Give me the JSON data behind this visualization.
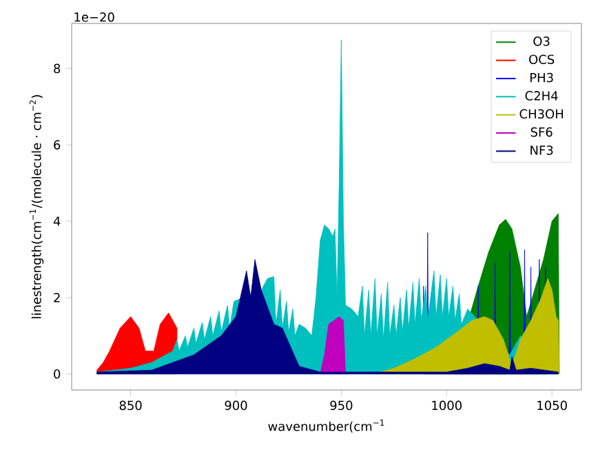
{
  "chart_data": {
    "type": "area",
    "xlabel": "wavenumber(cm$^{−1}$",
    "ylabel": "linestrength(cm$^{−1}$/(molecule · cm$^{−2}$)",
    "annotations": [
      "1e−20"
    ],
    "xlim": [
      822,
      1064
    ],
    "ylim": [
      -0.42,
      9.18
    ],
    "xticks": [
      850,
      900,
      950,
      1000,
      1050
    ],
    "yticks": [
      0,
      2,
      4,
      6,
      8
    ],
    "legend": "top right",
    "series": [
      {
        "name": "O3",
        "color": "#008000",
        "x": [
          1003,
          1015,
          1020,
          1025,
          1028,
          1031,
          1035,
          1038,
          1046,
          1050,
          1053,
          1053.5
        ],
        "values": [
          0,
          2.3,
          3.2,
          3.9,
          4.05,
          3.8,
          2.8,
          1.5,
          3.0,
          4.0,
          4.2,
          0
        ]
      },
      {
        "name": "OCS",
        "color": "#ff0000",
        "x": [
          834,
          837,
          840,
          845,
          850,
          854,
          857,
          861,
          864,
          868,
          872
        ],
        "values": [
          0.1,
          0.3,
          0.6,
          1.2,
          1.5,
          1.2,
          0.6,
          0.6,
          1.3,
          1.6,
          1.2
        ]
      },
      {
        "name": "PH3",
        "color": "#0000ff",
        "x": [
          988.6,
          989,
          989.4,
          990.6,
          991,
          991.4,
          1014.6,
          1015,
          1015.4,
          1022.6,
          1023,
          1023.4,
          1029.6,
          1030,
          1030.4,
          1036.6,
          1037,
          1037.4,
          1039.6,
          1040,
          1040.4,
          1043.6,
          1044,
          1044.4,
          1046.6,
          1047,
          1047.4
        ],
        "values": [
          0,
          2.3,
          0,
          0,
          3.7,
          0,
          0,
          2.3,
          0,
          0,
          2.9,
          0,
          0,
          3.2,
          0,
          0,
          3.25,
          0,
          0,
          2.8,
          0,
          0,
          3.0,
          0,
          0,
          2.8,
          0
        ]
      },
      {
        "name": "C2H4",
        "color": "#00bfbf",
        "x": [
          834,
          850,
          860,
          865,
          870,
          872,
          873,
          876,
          877,
          880,
          881,
          884,
          885,
          888,
          889,
          892,
          893,
          896,
          897,
          899,
          912,
          915,
          918,
          919,
          921,
          922,
          924,
          925,
          927,
          928,
          930,
          933,
          936,
          938,
          940,
          942,
          944,
          946,
          947,
          948,
          949,
          950,
          951,
          952,
          955,
          958,
          960,
          961,
          963,
          964,
          966,
          967,
          969,
          970,
          972,
          973,
          975,
          976,
          978,
          979,
          981,
          982,
          984,
          985,
          987,
          988,
          990,
          991,
          994,
          995,
          997,
          998,
          1000,
          1001,
          1003,
          1004,
          1006,
          1007,
          1010,
          1030,
          1035,
          1053
        ],
        "values": [
          0.05,
          0.15,
          0.3,
          0.45,
          0.6,
          0.9,
          0.6,
          1.0,
          0.7,
          1.2,
          0.8,
          1.35,
          0.9,
          1.5,
          1.0,
          1.65,
          1.1,
          1.8,
          1.2,
          1.9,
          2.2,
          2.5,
          2.55,
          1.3,
          2.2,
          1.2,
          1.9,
          1.1,
          1.7,
          1.0,
          1.3,
          1.2,
          1.0,
          2.0,
          3.5,
          3.9,
          3.8,
          3.6,
          3.8,
          2.0,
          5.0,
          8.75,
          4.0,
          1.8,
          1.7,
          1.5,
          2.3,
          1.0,
          2.2,
          1.0,
          2.5,
          1.0,
          2.1,
          0.9,
          2.4,
          1.0,
          1.8,
          1.0,
          2.0,
          1.1,
          2.2,
          1.2,
          2.4,
          1.3,
          2.5,
          1.4,
          2.3,
          1.4,
          2.7,
          1.5,
          2.6,
          1.5,
          2.5,
          1.5,
          2.3,
          1.4,
          2.1,
          1.3,
          1.7,
          0.5,
          1.0,
          0.3
        ]
      },
      {
        "name": "CH3OH",
        "color": "#bfbf00",
        "x": [
          965,
          975,
          985,
          995,
          1005,
          1012,
          1018,
          1022,
          1027,
          1031,
          1035,
          1040,
          1045,
          1048,
          1050,
          1052,
          1053,
          1053.5
        ],
        "values": [
          0,
          0.15,
          0.4,
          0.7,
          1.1,
          1.4,
          1.5,
          1.4,
          0.9,
          0.2,
          0.9,
          1.4,
          2.0,
          2.5,
          2.2,
          1.5,
          1.4,
          0
        ]
      },
      {
        "name": "SF6",
        "color": "#bf00bf",
        "x": [
          940,
          942,
          944,
          949,
          951,
          952
        ],
        "values": [
          0,
          0.5,
          1.3,
          1.5,
          1.4,
          0
        ]
      },
      {
        "name": "NF3",
        "color": "#000080",
        "x": [
          834,
          860,
          880,
          893,
          900,
          905,
          907,
          909,
          912,
          918,
          922,
          930,
          940,
          1000,
          1010,
          1018,
          1025,
          1030,
          1031,
          1033,
          1040,
          1053
        ],
        "values": [
          0.05,
          0.1,
          0.5,
          1.0,
          1.5,
          2.7,
          2.0,
          3.0,
          2.2,
          1.3,
          1.2,
          0.2,
          0.05,
          0.05,
          0.15,
          0.27,
          0.2,
          0.1,
          0.45,
          0.1,
          0.15,
          0.05
        ]
      }
    ]
  }
}
